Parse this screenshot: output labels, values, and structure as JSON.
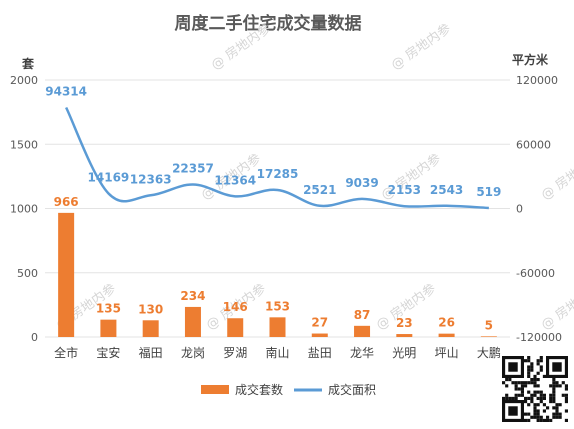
{
  "chart_data": {
    "type": "bar",
    "title": "周度二手住宅成交量数据",
    "categories": [
      "全市",
      "宝安",
      "福田",
      "龙岗",
      "罗湖",
      "南山",
      "盐田",
      "龙华",
      "光明",
      "坪山",
      "大鹏"
    ],
    "series": [
      {
        "name": "成交套数",
        "type": "bar",
        "axis": "left",
        "color": "#ED7D31",
        "values": [
          966,
          135,
          130,
          234,
          146,
          153,
          27,
          87,
          23,
          26,
          5
        ]
      },
      {
        "name": "成交面积",
        "type": "line",
        "axis": "right",
        "color": "#5B9BD5",
        "values": [
          94314,
          14169,
          12363,
          22357,
          11364,
          17285,
          2521,
          9039,
          2153,
          2543,
          519
        ]
      }
    ],
    "y_left": {
      "label": "套",
      "ticks": [
        "0",
        "500",
        "1000",
        "1500",
        "2000"
      ],
      "range": [
        0,
        2000
      ]
    },
    "y_right": {
      "label": "平方米",
      "ticks": [
        "-120000",
        "-60000",
        "0",
        "60000",
        "120000"
      ],
      "range": [
        -120000,
        120000
      ]
    },
    "grid": true,
    "legend_position": "bottom",
    "watermark_text": "房地内参"
  }
}
